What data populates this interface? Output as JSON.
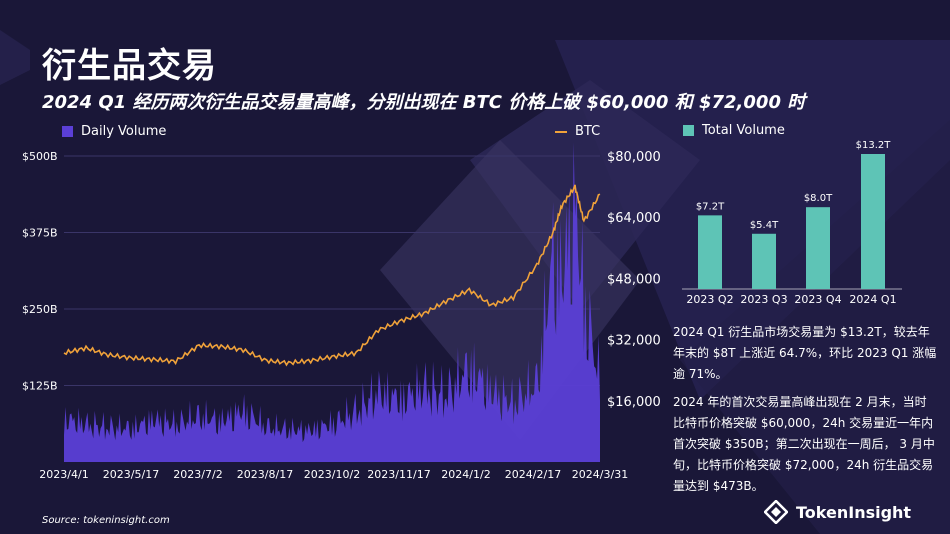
{
  "page": {
    "title": "衍生品交易",
    "subtitle": "2024 Q1 经历两次衍生品交易量高峰，分别出现在 BTC 价格上破 $60,000 和 $72,000 时",
    "source": "Source: tokeninsight.com",
    "brand": "TokenInsight",
    "paragraph1": "2024 Q1 衍生品市场交易量为 $13.2T，较去年年末的 $8T 上涨近 64.7%，环比 2023 Q1 涨幅逾 71%。",
    "paragraph2": "2024 年的首次交易量高峰出现在 2 月末，当时比特币价格突破 $60,000，24h 交易量近一年内首次突破 $350B；第二次出现在一周后， 3 月中旬，比特币价格突破 $72,000，24h 衍生品交易量达到 $473B。",
    "colors": {
      "background": "#1a1738",
      "volume": "#5b3fd6",
      "btc": "#f0a23a",
      "total": "#5ec4b6"
    }
  },
  "chart_data": [
    {
      "type": "area",
      "legend": {
        "volume": "Daily Volume",
        "btc": "BTC"
      },
      "x_ticks": [
        "2023/4/1",
        "2023/5/17",
        "2023/7/2",
        "2023/8/17",
        "2023/10/2",
        "2023/11/17",
        "2024/1/2",
        "2024/2/17",
        "2024/3/31"
      ],
      "y_left_ticks": [
        "$125B",
        "$250B",
        "$375B",
        "$500B"
      ],
      "y_left_range": [
        0,
        500
      ],
      "y_right_ticks": [
        "$16,000",
        "$32,000",
        "$48,000",
        "$64,000",
        "$80,000"
      ],
      "y_right_range": [
        0,
        80000
      ],
      "series": [
        {
          "name": "Daily Volume",
          "axis": "left",
          "unit": "B",
          "x": [
            "2023/4/1",
            "2023/4/16",
            "2023/5/1",
            "2023/5/17",
            "2023/6/1",
            "2023/6/16",
            "2023/7/2",
            "2023/7/17",
            "2023/8/1",
            "2023/8/17",
            "2023/9/1",
            "2023/9/16",
            "2023/10/2",
            "2023/10/17",
            "2023/11/1",
            "2023/11/17",
            "2023/12/2",
            "2023/12/17",
            "2024/1/2",
            "2024/1/17",
            "2024/2/1",
            "2024/2/17",
            "2024/2/28",
            "2024/3/5",
            "2024/3/14",
            "2024/3/20",
            "2024/3/31"
          ],
          "values": [
            80,
            70,
            65,
            62,
            78,
            70,
            85,
            75,
            95,
            65,
            60,
            58,
            72,
            95,
            130,
            115,
            140,
            125,
            175,
            130,
            110,
            145,
            380,
            340,
            473,
            300,
            150
          ]
        },
        {
          "name": "BTC",
          "axis": "right",
          "x": [
            "2023/4/1",
            "2023/4/16",
            "2023/5/1",
            "2023/5/17",
            "2023/6/1",
            "2023/6/16",
            "2023/7/2",
            "2023/7/17",
            "2023/8/1",
            "2023/8/17",
            "2023/9/1",
            "2023/9/16",
            "2023/10/2",
            "2023/10/17",
            "2023/11/1",
            "2023/11/17",
            "2023/12/2",
            "2023/12/17",
            "2024/1/2",
            "2024/1/17",
            "2024/2/1",
            "2024/2/17",
            "2024/2/28",
            "2024/3/5",
            "2024/3/14",
            "2024/3/20",
            "2024/3/31"
          ],
          "values": [
            28500,
            29800,
            28000,
            27200,
            26800,
            26300,
            30500,
            30200,
            29300,
            26500,
            25900,
            26500,
            27600,
            28500,
            34500,
            37000,
            38800,
            42000,
            45000,
            41000,
            43000,
            51500,
            60000,
            67000,
            72000,
            63000,
            70000
          ]
        }
      ]
    },
    {
      "type": "bar",
      "legend": "Total Volume",
      "categories": [
        "2023 Q2",
        "2023 Q3",
        "2023 Q4",
        "2024 Q1"
      ],
      "values": [
        7.2,
        5.4,
        8.0,
        13.2
      ],
      "labels": [
        "$7.2T",
        "$5.4T",
        "$8.0T",
        "$13.2T"
      ],
      "ylim": [
        0,
        13.2
      ]
    }
  ]
}
